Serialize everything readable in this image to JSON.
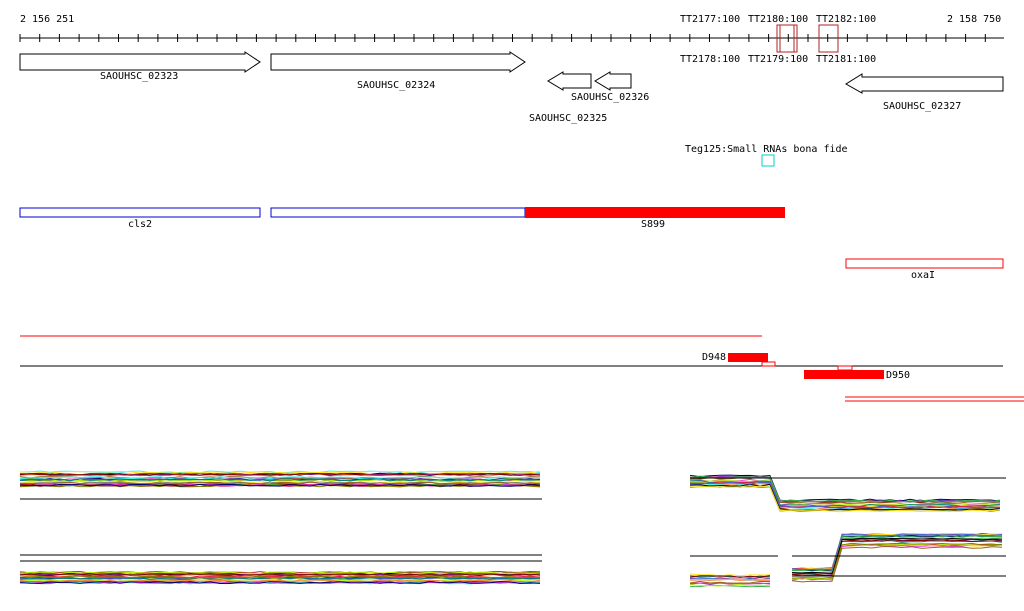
{
  "ruler": {
    "start": "2 156 251",
    "end": "2 158 750"
  },
  "probes_top": [
    "TT2177:100",
    "TT2180:100",
    "TT2182:100"
  ],
  "probes_bottom": [
    "TT2178:100",
    "TT2179:100",
    "TT2181:100"
  ],
  "genes": [
    "SAOUHSC_02323",
    "SAOUHSC_02324",
    "SAOUHSC_02325",
    "SAOUHSC_02326",
    "SAOUHSC_02327"
  ],
  "srna_label": "Teg125:Small RNAs bona fide",
  "regions": {
    "cls2": "cls2",
    "s899": "S899",
    "oxai": "oxaI"
  },
  "segments": {
    "d948": "D948",
    "d950": "D950"
  },
  "colors": {
    "red": "#ff0000",
    "dark_red": "#b22222",
    "blue": "#0000cc",
    "cyan": "#00cccc"
  }
}
